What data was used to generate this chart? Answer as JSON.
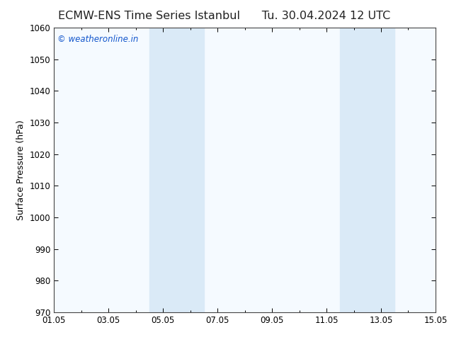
{
  "title_left": "ECMW-ENS Time Series Istanbul",
  "title_right": "Tu. 30.04.2024 12 UTC",
  "ylabel": "Surface Pressure (hPa)",
  "ylim": [
    970,
    1060
  ],
  "yticks": [
    970,
    980,
    990,
    1000,
    1010,
    1020,
    1030,
    1040,
    1050,
    1060
  ],
  "xlim_start": 0,
  "xlim_end": 14,
  "xtick_positions": [
    0,
    2,
    4,
    6,
    8,
    10,
    12,
    14
  ],
  "xtick_labels": [
    "01.05",
    "03.05",
    "05.05",
    "07.05",
    "09.05",
    "11.05",
    "13.05",
    "15.05"
  ],
  "minor_xtick_positions": [
    1,
    3,
    5,
    7,
    9,
    11,
    13
  ],
  "shade_bands": [
    {
      "x_start": 3.5,
      "x_end": 5.5
    },
    {
      "x_start": 10.5,
      "x_end": 12.5
    }
  ],
  "shade_color": "#daeaf7",
  "background_color": "#ffffff",
  "plot_bg_color": "#f5faff",
  "watermark_text": "© weatheronline.in",
  "watermark_color": "#1155cc",
  "title_fontsize": 11.5,
  "axis_label_fontsize": 9,
  "tick_fontsize": 8.5
}
